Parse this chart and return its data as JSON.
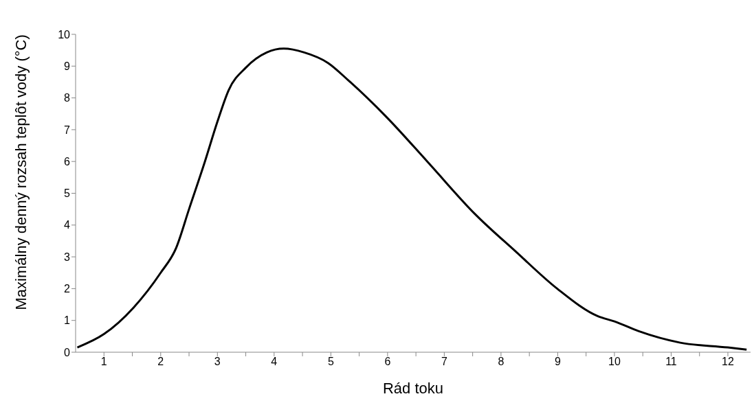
{
  "chart_data": {
    "type": "line",
    "xlabel": "Rád toku",
    "ylabel": "Maximálny denný rozsah teplôt vody (°C)",
    "x": [
      0.53,
      1.0,
      1.52,
      2.0,
      2.27,
      2.5,
      2.78,
      3.0,
      3.2,
      3.5,
      3.87,
      4.17,
      4.53,
      4.95,
      5.31,
      5.98,
      6.7,
      7.54,
      8.27,
      8.99,
      9.71,
      10.0,
      10.43,
      11.16,
      12.0,
      12.33
    ],
    "series": [
      {
        "color": "#000000",
        "values": [
          0.15,
          0.57,
          1.4,
          2.5,
          3.27,
          4.5,
          6.0,
          7.25,
          8.25,
          8.95,
          9.43,
          9.55,
          9.43,
          9.1,
          8.55,
          7.4,
          6.0,
          4.35,
          3.15,
          2.0,
          1.13,
          0.97,
          0.66,
          0.3,
          0.15,
          0.08
        ]
      }
    ],
    "xlim": [
      0.5,
      12.4
    ],
    "xticks": [
      1,
      {
        "value": 1.5,
        "label": null
      },
      2,
      {
        "value": 2.5,
        "label": null
      },
      3,
      {
        "value": 3.5,
        "label": null
      },
      4,
      {
        "value": 4.5,
        "label": null
      },
      5,
      {
        "value": 5.5,
        "label": null
      },
      6,
      {
        "value": 6.5,
        "label": null
      },
      7,
      {
        "value": 7.5,
        "label": null
      },
      8,
      {
        "value": 8.5,
        "label": null
      },
      9,
      {
        "value": 9.5,
        "label": null
      },
      10,
      {
        "value": 10.5,
        "label": null
      },
      11,
      {
        "value": 11.5,
        "label": null
      },
      12
    ],
    "ylim": [
      0,
      10
    ],
    "yticks": [
      0,
      1,
      2,
      3,
      4,
      5,
      6,
      7,
      8,
      9,
      10
    ],
    "grid": false,
    "legend": false,
    "marker": "none",
    "line_style": "solid"
  }
}
